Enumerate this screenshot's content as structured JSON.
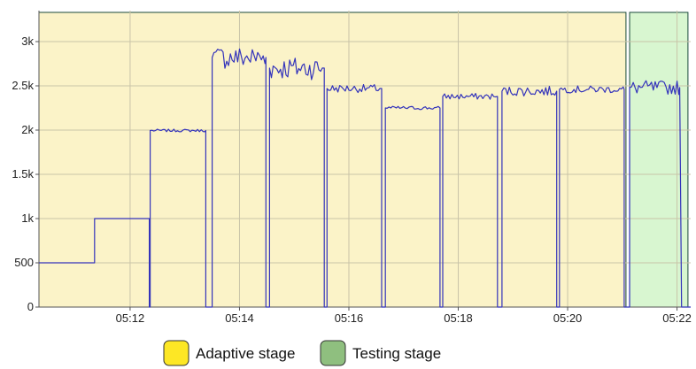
{
  "chart_data": {
    "type": "line",
    "title": "",
    "xlabel": "",
    "ylabel": "",
    "xlim": [
      "05:10:20",
      "05:22:15"
    ],
    "ylim": [
      0,
      3350
    ],
    "x_ticks": [
      "05:12",
      "05:14",
      "05:16",
      "05:18",
      "05:20",
      "05:22"
    ],
    "y_ticks": [
      {
        "value": 0,
        "label": "0"
      },
      {
        "value": 500,
        "label": "500"
      },
      {
        "value": 1000,
        "label": "1k"
      },
      {
        "value": 1500,
        "label": "1.5k"
      },
      {
        "value": 2000,
        "label": "2k"
      },
      {
        "value": 2500,
        "label": "2.5k"
      },
      {
        "value": 3000,
        "label": "3k"
      }
    ],
    "grid": true,
    "legend": {
      "placement": "bottom-center",
      "entries": [
        {
          "label": "Adaptive stage",
          "color": "#fde725"
        },
        {
          "label": "Testing stage",
          "color": "#8fbf7f"
        }
      ]
    },
    "regions": [
      {
        "label": "Adaptive stage",
        "start": "05:10:20",
        "end": "05:21:04",
        "color": "#fbf3c8",
        "border": "#1a4a3a"
      },
      {
        "label": "Testing stage",
        "start": "05:21:08",
        "end": "05:22:12",
        "color": "#d8f6d0",
        "border": "#1a4a3a"
      }
    ],
    "series": [
      {
        "line_color": "#3333bb",
        "segments": [
          {
            "start": "05:10:20",
            "end": "05:11:21",
            "level": 500,
            "noise": 0
          },
          {
            "start": "05:11:21",
            "end": "05:12:21",
            "level": 1000,
            "noise": 0
          },
          {
            "start": "05:12:22",
            "end": "05:13:23",
            "level": 1995,
            "noise": 15
          },
          {
            "start": "05:13:30",
            "end": "05:14:29",
            "level": 2820,
            "noise": 130
          },
          {
            "start": "05:14:33",
            "end": "05:15:33",
            "level": 2700,
            "noise": 130
          },
          {
            "start": "05:15:36",
            "end": "05:16:36",
            "level": 2470,
            "noise": 45
          },
          {
            "start": "05:16:40",
            "end": "05:17:40",
            "level": 2250,
            "noise": 20
          },
          {
            "start": "05:17:43",
            "end": "05:18:43",
            "level": 2380,
            "noise": 35
          },
          {
            "start": "05:18:48",
            "end": "05:19:48",
            "level": 2440,
            "noise": 55
          },
          {
            "start": "05:19:51",
            "end": "05:21:02",
            "level": 2460,
            "noise": 40
          },
          {
            "start": "05:21:08",
            "end": "05:22:03",
            "level": 2480,
            "noise": 80
          }
        ]
      }
    ]
  }
}
